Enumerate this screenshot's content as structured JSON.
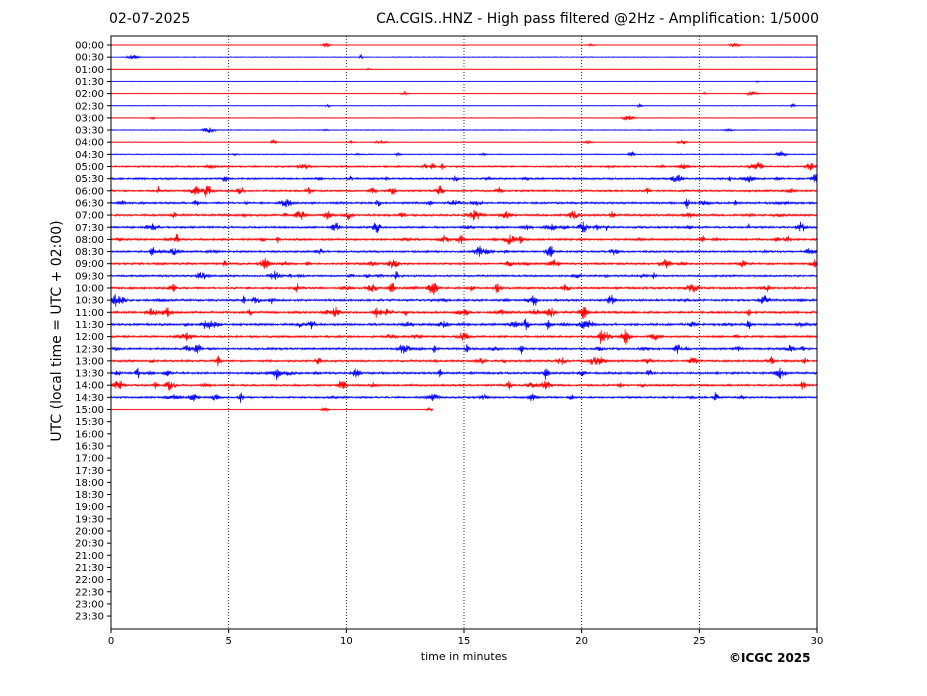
{
  "header": {
    "date": "02-07-2025",
    "title": "CA.CGIS..HNZ - High pass filtered @2Hz - Amplification: 1/5000"
  },
  "footer": {
    "copyright": "©ICGC 2025"
  },
  "colors": {
    "trace_a": "#ff0000",
    "trace_b": "#0000ff",
    "axis": "#000000",
    "grid": "#000000"
  },
  "chart_data": {
    "type": "line",
    "title": "CA.CGIS..HNZ - High pass filtered @2Hz - Amplification: 1/5000",
    "subtitle": "02-07-2025",
    "xlabel": "time in minutes",
    "ylabel": "UTC (local time = UTC + 02:00)",
    "xlim": [
      0,
      30
    ],
    "x_ticks": [
      0,
      5,
      10,
      15,
      20,
      25,
      30
    ],
    "grid": "vertical dotted lines at 5-minute intervals",
    "y_ticks": [
      "00:00",
      "00:30",
      "01:00",
      "01:30",
      "02:00",
      "02:30",
      "03:00",
      "03:30",
      "04:00",
      "04:30",
      "05:00",
      "05:30",
      "06:00",
      "06:30",
      "07:00",
      "07:30",
      "08:00",
      "08:30",
      "09:00",
      "09:30",
      "10:00",
      "10:30",
      "11:00",
      "11:30",
      "12:00",
      "12:30",
      "13:00",
      "13:30",
      "14:00",
      "14:30",
      "15:00",
      "15:30",
      "16:00",
      "16:30",
      "17:00",
      "17:30",
      "18:00",
      "18:30",
      "19:00",
      "19:30",
      "20:00",
      "20:30",
      "21:00",
      "21:30",
      "22:00",
      "22:30",
      "23:00",
      "23:30"
    ],
    "trace_colors_alternate": [
      "#ff0000",
      "#0000ff"
    ],
    "last_trace": {
      "label": "15:00",
      "end_minute": 13.7
    },
    "activity_by_row": [
      0.05,
      0.07,
      0.05,
      0.05,
      0.05,
      0.08,
      0.07,
      0.12,
      0.12,
      0.22,
      0.5,
      0.6,
      0.6,
      0.65,
      0.7,
      0.65,
      0.65,
      0.6,
      0.65,
      0.6,
      0.7,
      0.7,
      0.75,
      0.75,
      0.65,
      0.7,
      0.65,
      0.7,
      0.65,
      0.6,
      0.05
    ]
  }
}
